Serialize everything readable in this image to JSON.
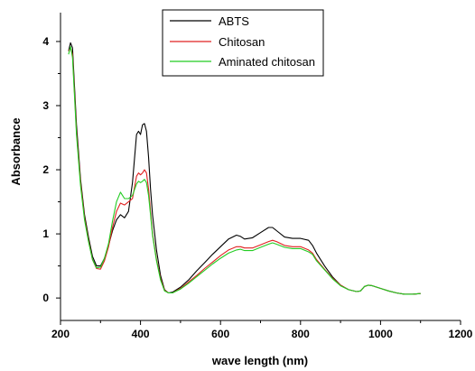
{
  "chart_data": {
    "type": "line",
    "title": "",
    "xlabel": "wave length (nm)",
    "ylabel": "Absorbance",
    "xlim": [
      200,
      1200
    ],
    "ylim": [
      -0.35,
      4.45
    ],
    "x_ticks": [
      200,
      400,
      600,
      800,
      1000,
      1200
    ],
    "y_ticks": [
      0,
      1,
      2,
      3,
      4
    ],
    "grid": false,
    "legend_position": "top-center",
    "series": [
      {
        "name": "ABTS",
        "color": "#000000",
        "x": [
          220,
          225,
          230,
          235,
          240,
          250,
          260,
          270,
          280,
          290,
          300,
          310,
          320,
          330,
          340,
          350,
          360,
          370,
          380,
          390,
          395,
          400,
          405,
          410,
          415,
          420,
          425,
          430,
          440,
          450,
          460,
          470,
          480,
          500,
          520,
          540,
          560,
          580,
          600,
          620,
          640,
          650,
          660,
          680,
          700,
          720,
          730,
          740,
          760,
          780,
          800,
          820,
          830,
          840,
          860,
          880,
          900,
          920,
          940,
          950,
          960,
          970,
          980,
          1000,
          1020,
          1040,
          1060,
          1080,
          1100
        ],
        "y": [
          3.85,
          3.98,
          3.9,
          3.3,
          2.7,
          1.85,
          1.3,
          0.95,
          0.65,
          0.5,
          0.5,
          0.62,
          0.82,
          1.05,
          1.22,
          1.3,
          1.25,
          1.35,
          1.8,
          2.55,
          2.6,
          2.55,
          2.7,
          2.72,
          2.6,
          2.2,
          1.7,
          1.3,
          0.75,
          0.35,
          0.13,
          0.08,
          0.09,
          0.17,
          0.28,
          0.42,
          0.55,
          0.68,
          0.8,
          0.92,
          0.98,
          0.96,
          0.92,
          0.94,
          1.02,
          1.1,
          1.1,
          1.05,
          0.95,
          0.93,
          0.93,
          0.9,
          0.82,
          0.7,
          0.5,
          0.33,
          0.2,
          0.13,
          0.1,
          0.11,
          0.18,
          0.2,
          0.19,
          0.15,
          0.11,
          0.08,
          0.06,
          0.06,
          0.07
        ]
      },
      {
        "name": "Chitosan",
        "color": "#e02020",
        "x": [
          220,
          225,
          230,
          235,
          240,
          250,
          260,
          270,
          280,
          290,
          300,
          310,
          320,
          330,
          340,
          350,
          360,
          370,
          380,
          390,
          395,
          400,
          405,
          410,
          415,
          420,
          425,
          430,
          440,
          450,
          460,
          470,
          480,
          500,
          520,
          540,
          560,
          580,
          600,
          620,
          640,
          650,
          660,
          680,
          700,
          720,
          730,
          740,
          760,
          780,
          800,
          820,
          830,
          840,
          860,
          880,
          900,
          920,
          940,
          950,
          960,
          970,
          980,
          1000,
          1020,
          1040,
          1060,
          1080,
          1100
        ],
        "y": [
          3.85,
          3.9,
          3.8,
          3.2,
          2.6,
          1.8,
          1.25,
          0.9,
          0.6,
          0.46,
          0.45,
          0.58,
          0.8,
          1.1,
          1.35,
          1.48,
          1.45,
          1.5,
          1.55,
          1.9,
          1.95,
          1.92,
          1.95,
          2.0,
          1.95,
          1.7,
          1.35,
          1.0,
          0.6,
          0.3,
          0.12,
          0.08,
          0.08,
          0.15,
          0.25,
          0.35,
          0.46,
          0.56,
          0.66,
          0.75,
          0.8,
          0.8,
          0.78,
          0.78,
          0.83,
          0.88,
          0.9,
          0.88,
          0.82,
          0.8,
          0.8,
          0.75,
          0.7,
          0.6,
          0.45,
          0.31,
          0.2,
          0.13,
          0.1,
          0.11,
          0.18,
          0.2,
          0.19,
          0.15,
          0.11,
          0.08,
          0.06,
          0.06,
          0.07
        ]
      },
      {
        "name": "Aminated chitosan",
        "color": "#22cc22",
        "x": [
          220,
          225,
          230,
          235,
          240,
          250,
          260,
          270,
          280,
          290,
          300,
          310,
          320,
          330,
          340,
          350,
          360,
          370,
          380,
          390,
          395,
          400,
          405,
          410,
          415,
          420,
          425,
          430,
          440,
          450,
          460,
          470,
          480,
          500,
          520,
          540,
          560,
          580,
          600,
          620,
          640,
          650,
          660,
          680,
          700,
          720,
          730,
          740,
          760,
          780,
          800,
          820,
          830,
          840,
          860,
          880,
          900,
          920,
          940,
          950,
          960,
          970,
          980,
          1000,
          1020,
          1040,
          1060,
          1080,
          1100
        ],
        "y": [
          3.8,
          3.92,
          3.75,
          3.15,
          2.55,
          1.75,
          1.22,
          0.88,
          0.6,
          0.47,
          0.48,
          0.62,
          0.85,
          1.2,
          1.5,
          1.65,
          1.55,
          1.55,
          1.6,
          1.78,
          1.82,
          1.8,
          1.82,
          1.85,
          1.8,
          1.6,
          1.3,
          0.98,
          0.58,
          0.28,
          0.11,
          0.08,
          0.08,
          0.14,
          0.23,
          0.33,
          0.43,
          0.53,
          0.62,
          0.7,
          0.75,
          0.76,
          0.74,
          0.74,
          0.79,
          0.84,
          0.86,
          0.84,
          0.79,
          0.77,
          0.77,
          0.72,
          0.68,
          0.58,
          0.44,
          0.3,
          0.19,
          0.13,
          0.1,
          0.11,
          0.18,
          0.2,
          0.19,
          0.15,
          0.11,
          0.08,
          0.06,
          0.06,
          0.07
        ]
      }
    ]
  }
}
